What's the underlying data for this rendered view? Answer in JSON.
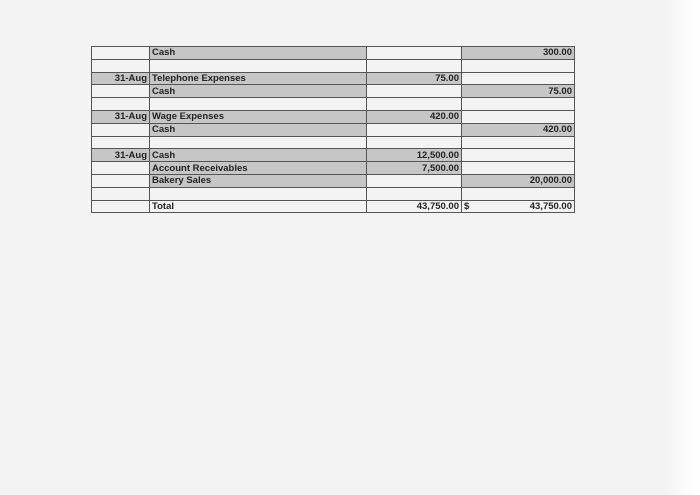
{
  "journal": {
    "rows": [
      {
        "date": "",
        "account": "Cash",
        "debit": "",
        "credit": "300.00",
        "shade": [
          0,
          1,
          0,
          1
        ]
      },
      {
        "date": "",
        "account": "",
        "debit": "",
        "credit": "",
        "shade": [
          0,
          0,
          0,
          0
        ]
      },
      {
        "date": "31-Aug",
        "account": "Telephone Expenses",
        "debit": "75.00",
        "credit": "",
        "shade": [
          1,
          1,
          1,
          0
        ]
      },
      {
        "date": "",
        "account": "Cash",
        "debit": "",
        "credit": "75.00",
        "shade": [
          0,
          1,
          0,
          1
        ]
      },
      {
        "date": "",
        "account": "",
        "debit": "",
        "credit": "",
        "shade": [
          0,
          0,
          0,
          0
        ]
      },
      {
        "date": "31-Aug",
        "account": "Wage Expenses",
        "debit": "420.00",
        "credit": "",
        "shade": [
          1,
          1,
          1,
          0
        ]
      },
      {
        "date": "",
        "account": "Cash",
        "debit": "",
        "credit": "420.00",
        "shade": [
          0,
          1,
          0,
          1
        ]
      },
      {
        "date": "",
        "account": "",
        "debit": "",
        "credit": "",
        "shade": [
          0,
          0,
          0,
          0
        ]
      },
      {
        "date": "31-Aug",
        "account": "Cash",
        "debit": "12,500.00",
        "credit": "",
        "shade": [
          1,
          1,
          1,
          0
        ]
      },
      {
        "date": "",
        "account": "Account Receivables",
        "debit": "7,500.00",
        "credit": "",
        "shade": [
          0,
          1,
          1,
          0
        ]
      },
      {
        "date": "",
        "account": "Bakery Sales",
        "debit": "",
        "credit": "20,000.00",
        "shade": [
          0,
          1,
          0,
          1
        ]
      },
      {
        "date": "",
        "account": "",
        "debit": "",
        "credit": "",
        "shade": [
          0,
          0,
          0,
          0
        ]
      }
    ],
    "total": {
      "label": "Total",
      "debit": "43,750.00",
      "currency": "$",
      "credit": "43,750.00"
    },
    "colors": {
      "shade": "#c6c6c6",
      "border": "#555555",
      "paper": "#f3f3f3"
    }
  }
}
